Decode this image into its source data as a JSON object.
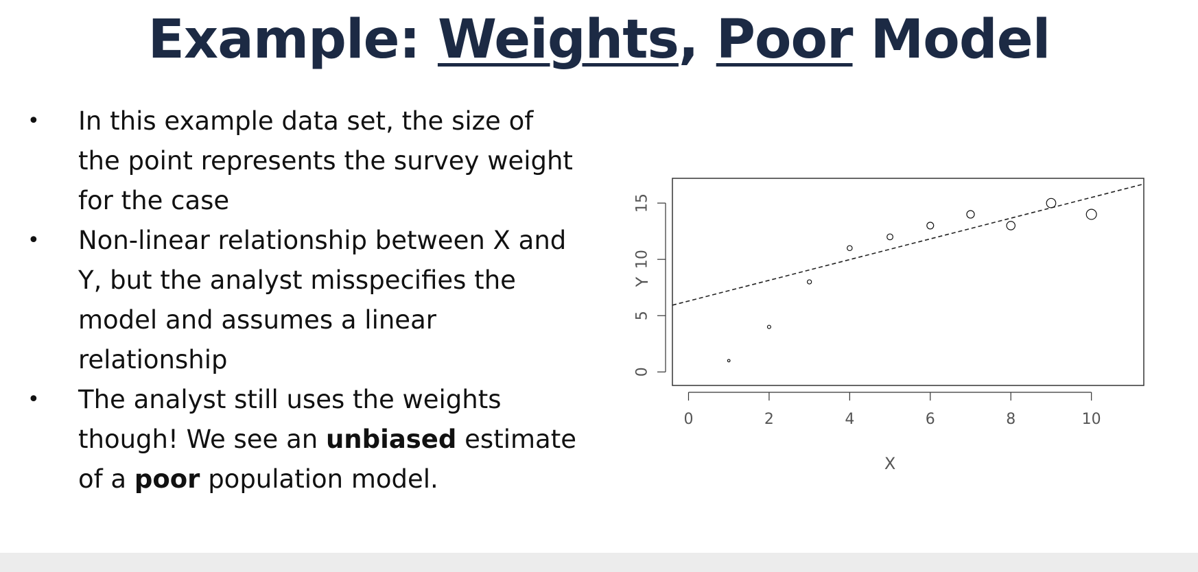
{
  "title": {
    "part1": "Example: ",
    "part2": "Weights",
    "part3": ", ",
    "part4": "Poor",
    "part5": " Model"
  },
  "bullets": [
    {
      "segments": [
        {
          "text": "In this example data set, the size of the point represents the survey weight for the case",
          "bold": false
        }
      ]
    },
    {
      "segments": [
        {
          "text": "Non-linear relationship between X and Y, but the analyst misspecifies the model and assumes a linear relationship",
          "bold": false
        }
      ]
    },
    {
      "segments": [
        {
          "text": "The analyst still uses the weights though! We see an ",
          "bold": false
        },
        {
          "text": "unbiased",
          "bold": true
        },
        {
          "text": " estimate of a ",
          "bold": false
        },
        {
          "text": "poor",
          "bold": true
        },
        {
          "text": " population model.",
          "bold": false
        }
      ]
    }
  ],
  "chart_data": {
    "type": "scatter",
    "xlabel": "X",
    "ylabel": "Y",
    "xlim": [
      -0.4,
      11.3
    ],
    "ylim": [
      -1.2,
      17.2
    ],
    "x_ticks": [
      0,
      2,
      4,
      6,
      8,
      10
    ],
    "y_ticks": [
      0,
      5,
      10,
      15
    ],
    "grid": false,
    "points": [
      {
        "x": 1,
        "y": 1,
        "weight": 1
      },
      {
        "x": 2,
        "y": 4,
        "weight": 2
      },
      {
        "x": 3,
        "y": 8,
        "weight": 3
      },
      {
        "x": 4,
        "y": 11,
        "weight": 4
      },
      {
        "x": 5,
        "y": 12,
        "weight": 5
      },
      {
        "x": 6,
        "y": 13,
        "weight": 6
      },
      {
        "x": 7,
        "y": 14,
        "weight": 7
      },
      {
        "x": 8,
        "y": 13,
        "weight": 8
      },
      {
        "x": 9,
        "y": 15,
        "weight": 9
      },
      {
        "x": 10,
        "y": 14,
        "weight": 10
      }
    ],
    "fit_line": {
      "style": "dashed",
      "intercept": 6.3,
      "slope": 0.92
    },
    "colors": {
      "axis": "#333333",
      "points": "#111111",
      "line": "#222222"
    }
  }
}
